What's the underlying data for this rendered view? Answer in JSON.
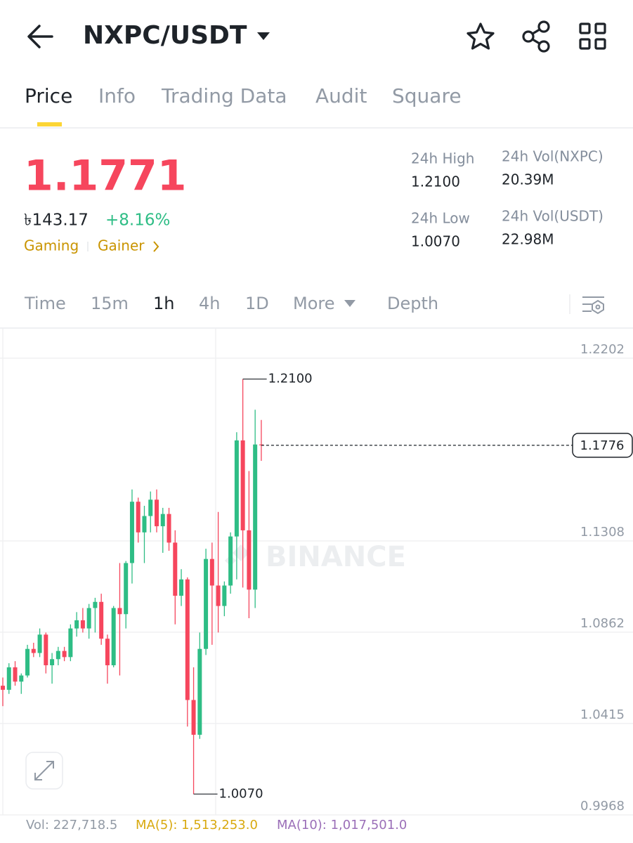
{
  "header": {
    "pair": "NXPC/USDT"
  },
  "tabs": [
    "Price",
    "Info",
    "Trading Data",
    "Audit",
    "Square"
  ],
  "ticker": {
    "price": "1.1771",
    "fiat": "৳143.17",
    "change": "+8.16%",
    "tags": [
      "Gaming",
      "Gainer"
    ]
  },
  "stats": [
    {
      "label": "24h High",
      "value": "1.2100"
    },
    {
      "label": "24h Vol(NXPC)",
      "value": "20.39M"
    },
    {
      "label": "24h Low",
      "value": "1.0070"
    },
    {
      "label": "24h Vol(USDT)",
      "value": "22.98M"
    }
  ],
  "intervals": [
    "Time",
    "15m",
    "1h",
    "4h",
    "1D",
    "More",
    "Depth"
  ],
  "chart_data": {
    "type": "candlestick",
    "watermark": "BINANCE",
    "open": [
      1.06,
      1.058,
      1.069,
      1.062,
      1.065,
      1.078,
      1.076,
      1.085,
      1.07,
      1.073,
      1.077,
      1.074,
      1.088,
      1.092,
      1.088,
      1.098,
      1.101,
      1.083,
      1.07,
      1.098,
      1.095,
      1.12,
      1.15,
      1.135,
      1.143,
      1.151,
      1.138,
      1.144,
      1.13,
      1.104,
      1.112,
      1.053,
      1.036,
      1.078,
      1.122,
      1.109,
      1.099,
      1.109,
      1.133,
      1.18,
      1.136,
      1.107,
      1.178
    ],
    "high": [
      1.064,
      1.071,
      1.072,
      1.066,
      1.08,
      1.081,
      1.088,
      1.086,
      1.076,
      1.079,
      1.079,
      1.09,
      1.096,
      1.098,
      1.1,
      1.103,
      1.105,
      1.085,
      1.099,
      1.12,
      1.121,
      1.156,
      1.152,
      1.148,
      1.155,
      1.156,
      1.147,
      1.147,
      1.136,
      1.117,
      1.113,
      1.069,
      1.086,
      1.127,
      1.13,
      1.145,
      1.111,
      1.135,
      1.184,
      1.21,
      1.165,
      1.195,
      1.19
    ],
    "low": [
      1.05,
      1.056,
      1.06,
      1.056,
      1.064,
      1.074,
      1.074,
      1.066,
      1.061,
      1.07,
      1.072,
      1.072,
      1.084,
      1.086,
      1.083,
      1.086,
      1.08,
      1.061,
      1.069,
      1.065,
      1.088,
      1.11,
      1.13,
      1.12,
      1.135,
      1.135,
      1.125,
      1.126,
      1.09,
      1.099,
      1.04,
      1.007,
      1.034,
      1.075,
      1.08,
      1.086,
      1.094,
      1.105,
      1.112,
      1.108,
      1.093,
      1.098,
      1.17
    ],
    "close": [
      1.058,
      1.069,
      1.062,
      1.065,
      1.078,
      1.076,
      1.085,
      1.07,
      1.073,
      1.077,
      1.074,
      1.088,
      1.092,
      1.088,
      1.098,
      1.101,
      1.083,
      1.07,
      1.098,
      1.095,
      1.12,
      1.15,
      1.135,
      1.143,
      1.151,
      1.138,
      1.144,
      1.13,
      1.104,
      1.112,
      1.053,
      1.036,
      1.078,
      1.122,
      1.109,
      1.099,
      1.109,
      1.133,
      1.18,
      1.136,
      1.107,
      1.178,
      1.1776
    ],
    "up_color": "#2ebd85",
    "down_color": "#f6465d",
    "ylim": [
      0.9968,
      1.2346
    ],
    "yticks": [
      0.9968,
      1.0415,
      1.0862,
      1.1308,
      1.2202
    ],
    "grid": true,
    "last_price": 1.1776,
    "high_marker": {
      "value": 1.21,
      "label": "1.2100"
    },
    "low_marker": {
      "value": 1.007,
      "label": "1.0070"
    }
  },
  "footer": {
    "vol": "Vol: 227,718.5",
    "ma5": "MA(5): 1,513,253.0",
    "ma10": "MA(10): 1,017,501.0"
  }
}
